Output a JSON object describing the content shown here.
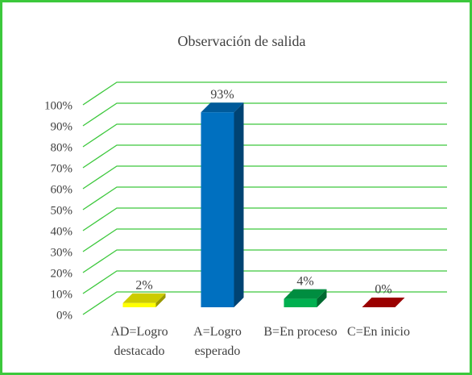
{
  "chart_data": {
    "type": "bar3d",
    "title": "Observación de salida",
    "categories": [
      "AD=Logro destacado",
      "A=Logro esperado",
      "B=En proceso",
      "C=En inicio"
    ],
    "values": [
      2,
      93,
      4,
      0
    ],
    "value_labels": [
      "2%",
      "93%",
      "4%",
      "0%"
    ],
    "colors": [
      "#ffff00",
      "#0070c0",
      "#00b050",
      "#c00000"
    ],
    "ylim": [
      0,
      100
    ],
    "yticks": [
      {
        "value": 0,
        "label": "0%"
      },
      {
        "value": 10,
        "label": "10%"
      },
      {
        "value": 20,
        "label": "20%"
      },
      {
        "value": 30,
        "label": "30%"
      },
      {
        "value": 40,
        "label": "40%"
      },
      {
        "value": 50,
        "label": "50%"
      },
      {
        "value": 60,
        "label": "60%"
      },
      {
        "value": 70,
        "label": "70%"
      },
      {
        "value": 80,
        "label": "80%"
      },
      {
        "value": 90,
        "label": "90%"
      },
      {
        "value": 100,
        "label": "100%"
      }
    ],
    "grid": true,
    "grid_color": "#3cc83c"
  }
}
